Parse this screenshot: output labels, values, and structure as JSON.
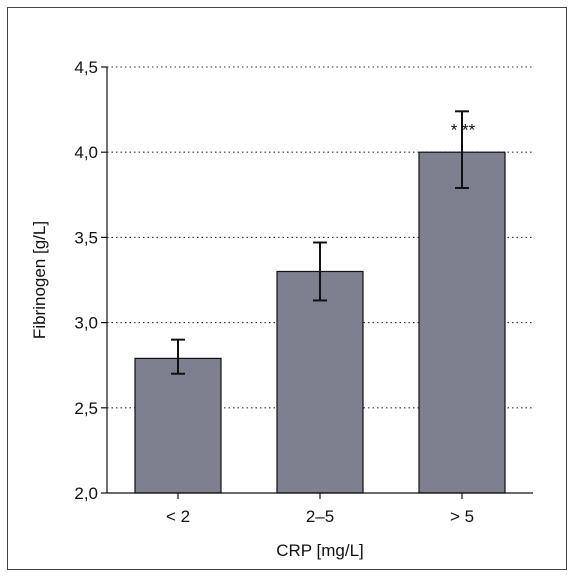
{
  "chart_data": {
    "type": "bar",
    "categories": [
      "< 2",
      "2–5",
      "> 5"
    ],
    "values": [
      2.79,
      3.3,
      4.0
    ],
    "error_low": [
      2.7,
      3.13,
      3.79
    ],
    "error_high": [
      2.9,
      3.47,
      4.24
    ],
    "annotations": [
      "",
      "",
      "* **"
    ],
    "ylim": [
      2.0,
      4.5
    ],
    "yticks": [
      "2,0",
      "2,5",
      "3,0",
      "3,5",
      "4,0",
      "4,5"
    ],
    "ytick_values": [
      2.0,
      2.5,
      3.0,
      3.5,
      4.0,
      4.5
    ],
    "xlabel": "CRP [mg/L]",
    "ylabel": "Fibrinogen [g/L]",
    "grid": "horizontal-dotted",
    "bar_color": "#7e8090"
  }
}
